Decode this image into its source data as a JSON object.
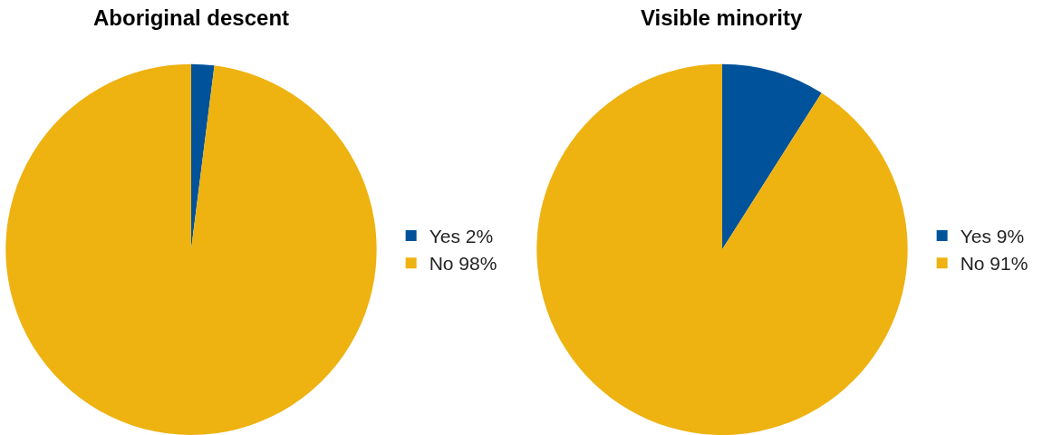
{
  "chart_data": [
    {
      "type": "pie",
      "title": "Aboriginal descent",
      "categories": [
        "Yes",
        "No"
      ],
      "values": [
        2,
        98
      ],
      "value_labels": [
        "2%",
        "98%"
      ],
      "colors": [
        "#00529b",
        "#eeb211"
      ],
      "legend": "right"
    },
    {
      "type": "pie",
      "title": "Visible minority",
      "categories": [
        "Yes",
        "No"
      ],
      "values": [
        9,
        91
      ],
      "value_labels": [
        "9%",
        "91%"
      ],
      "colors": [
        "#00529b",
        "#eeb211"
      ],
      "legend": "right"
    }
  ]
}
